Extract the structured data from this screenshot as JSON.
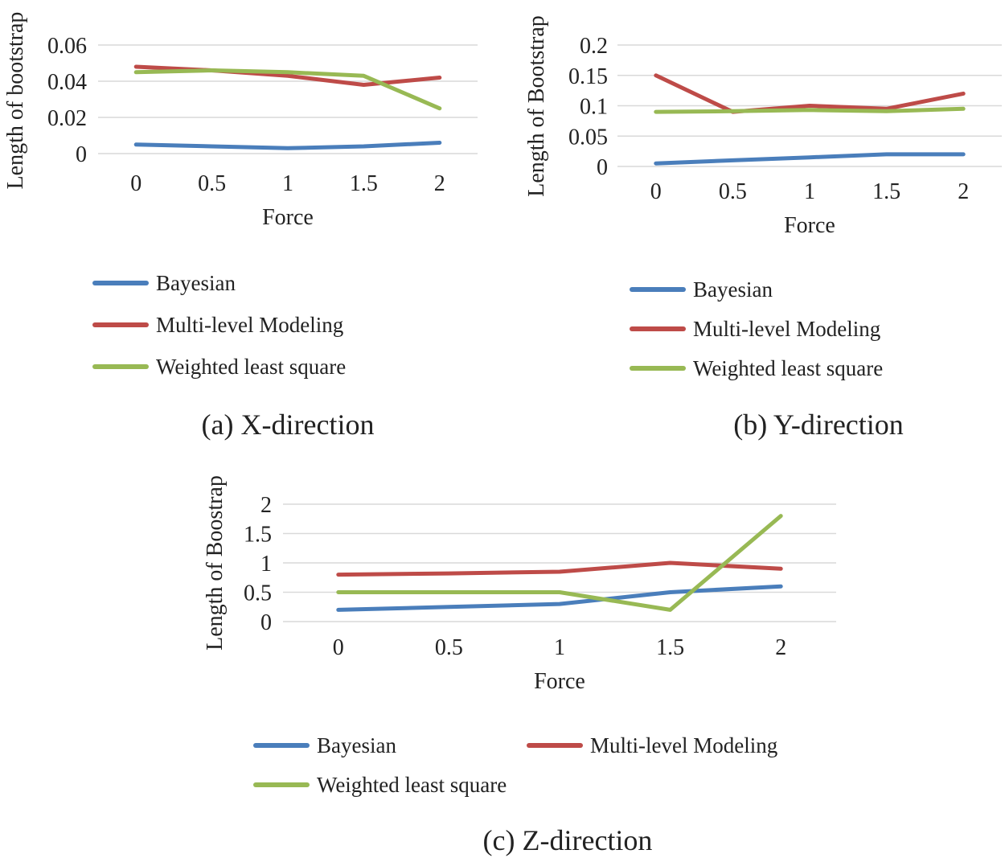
{
  "colors": {
    "bayesian": "#4a7ebb",
    "multilevel": "#be4b48",
    "wls": "#98b954"
  },
  "chart_data": [
    {
      "type": "line",
      "caption": "(a) X-direction",
      "xlabel": "Force",
      "ylabel": "Length of bootstrap",
      "categories": [
        "0",
        "0.5",
        "1",
        "1.5",
        "2"
      ],
      "yticks": [
        "0",
        "0.02",
        "0.04",
        "0.06"
      ],
      "ylim": [
        0,
        0.06
      ],
      "legend_position": "bottom",
      "series": [
        {
          "name": "Bayesian",
          "values": [
            0.005,
            0.004,
            0.003,
            0.004,
            0.006
          ]
        },
        {
          "name": "Multi-level Modeling",
          "values": [
            0.048,
            0.046,
            0.043,
            0.038,
            0.042
          ]
        },
        {
          "name": "Weighted least square",
          "values": [
            0.045,
            0.046,
            0.045,
            0.043,
            0.025
          ]
        }
      ]
    },
    {
      "type": "line",
      "caption": "(b) Y-direction",
      "xlabel": "Force",
      "ylabel": "Length of Bootstrap",
      "categories": [
        "0",
        "0.5",
        "1",
        "1.5",
        "2"
      ],
      "yticks": [
        "0",
        "0.05",
        "0.1",
        "0.15",
        "0.2"
      ],
      "ylim": [
        0,
        0.2
      ],
      "legend_position": "bottom",
      "series": [
        {
          "name": "Bayesian",
          "values": [
            0.005,
            0.01,
            0.015,
            0.02,
            0.02
          ]
        },
        {
          "name": "Multi-level Modeling",
          "values": [
            0.15,
            0.09,
            0.1,
            0.095,
            0.12
          ]
        },
        {
          "name": "Weighted least square",
          "values": [
            0.09,
            0.091,
            0.093,
            0.091,
            0.095
          ]
        }
      ]
    },
    {
      "type": "line",
      "caption": "(c) Z-direction",
      "xlabel": "Force",
      "ylabel": "Length of Boostrap",
      "categories": [
        "0",
        "0.5",
        "1",
        "1.5",
        "2"
      ],
      "yticks": [
        "0",
        "0.5",
        "1",
        "1.5",
        "2"
      ],
      "ylim": [
        0,
        2
      ],
      "legend_position": "bottom",
      "series": [
        {
          "name": "Bayesian",
          "values": [
            0.2,
            0.25,
            0.3,
            0.5,
            0.6
          ]
        },
        {
          "name": "Multi-level Modeling",
          "values": [
            0.8,
            0.82,
            0.85,
            1.0,
            0.9
          ]
        },
        {
          "name": "Weighted least square",
          "values": [
            0.5,
            0.5,
            0.5,
            0.2,
            1.8
          ]
        }
      ]
    }
  ]
}
